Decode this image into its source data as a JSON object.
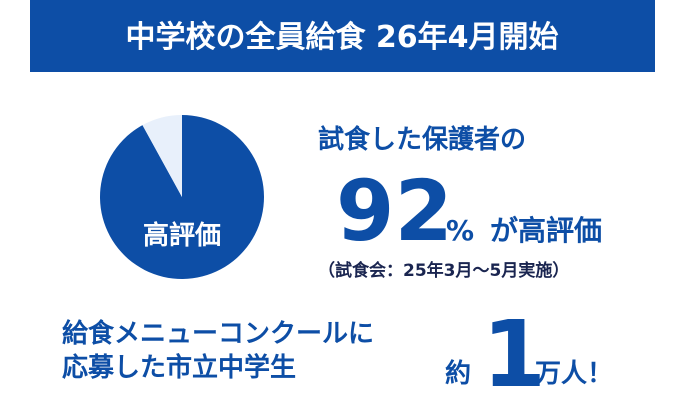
{
  "header": {
    "title": "中学校の全員給食 26年4月開始"
  },
  "chart_data": {
    "type": "pie",
    "categories": [
      "高評価",
      null
    ],
    "values": [
      92,
      8
    ],
    "colors": [
      "#0d4ea6",
      "#e8f0fb"
    ]
  },
  "survey": {
    "lead": "試食した保護者の",
    "value": "92",
    "unit": "%",
    "suffix": "が高評価",
    "note": "（試食会：25年3月～5月実施）"
  },
  "contest": {
    "lines": [
      "給食メニューコンクールに",
      "応募した市立中学生"
    ],
    "prefix": "約",
    "value": "1",
    "suffix": "万人！"
  }
}
